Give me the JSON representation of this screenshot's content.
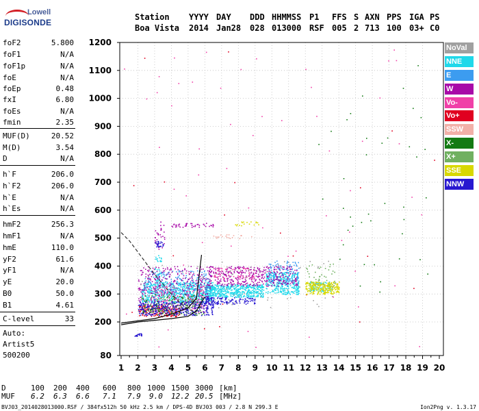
{
  "logo": {
    "line1": "Lowell",
    "line2": "DIGISONDE"
  },
  "header": {
    "labels": [
      "Station",
      "YYYY",
      "DAY",
      "DDD",
      "HHMMSS",
      "P1",
      "FFS",
      "S",
      "AXN",
      "PPS",
      "IGA",
      "PS"
    ],
    "values": [
      "Boa Vista",
      "2014",
      "Jan28",
      "028",
      "013000",
      "RSF",
      "005",
      "2",
      "713",
      "100",
      "03+",
      "C0"
    ]
  },
  "params": [
    {
      "name": "foF2",
      "value": "5.800"
    },
    {
      "name": "foF1",
      "value": "N/A"
    },
    {
      "name": "foF1p",
      "value": "N/A"
    },
    {
      "name": "foE",
      "value": "N/A"
    },
    {
      "name": "foEp",
      "value": "0.48"
    },
    {
      "name": "fxI",
      "value": "6.80"
    },
    {
      "name": "foEs",
      "value": "N/A"
    },
    {
      "name": "fmin",
      "value": "2.35"
    },
    {
      "name": "MUF(D)",
      "value": "20.52"
    },
    {
      "name": "M(D)",
      "value": "3.54"
    },
    {
      "name": "D",
      "value": "N/A"
    },
    {
      "name": "h`F",
      "value": "206.0"
    },
    {
      "name": "h`F2",
      "value": "206.0"
    },
    {
      "name": "h`E",
      "value": "N/A"
    },
    {
      "name": "h`Es",
      "value": "N/A"
    },
    {
      "name": "hmF2",
      "value": "256.3"
    },
    {
      "name": "hmF1",
      "value": "N/A"
    },
    {
      "name": "hmE",
      "value": "110.0"
    },
    {
      "name": "yF2",
      "value": "61.6"
    },
    {
      "name": "yF1",
      "value": "N/A"
    },
    {
      "name": "yE",
      "value": "20.0"
    },
    {
      "name": "B0",
      "value": "50.0"
    },
    {
      "name": "B1",
      "value": "4.61"
    },
    {
      "name": "C-level",
      "value": "33"
    }
  ],
  "auto": [
    "Auto:",
    "Artist5",
    "500200"
  ],
  "legend": [
    {
      "label": "NoVal",
      "color": "#a0a0a0"
    },
    {
      "label": "NNE",
      "color": "#1fd8ea"
    },
    {
      "label": "E",
      "color": "#3c9cf0"
    },
    {
      "label": "W",
      "color": "#a80aa8"
    },
    {
      "label": "Vo-",
      "color": "#f040a8"
    },
    {
      "label": "Vo+",
      "color": "#e00020"
    },
    {
      "label": "SSW",
      "color": "#f2b0a8"
    },
    {
      "label": "X-",
      "color": "#137a13"
    },
    {
      "label": "X+",
      "color": "#70b060"
    },
    {
      "label": "SSE",
      "color": "#d8d800"
    },
    {
      "label": "NNW",
      "color": "#2818d0"
    }
  ],
  "muf_table": {
    "d_label": "D",
    "d_values": [
      "100",
      "200",
      "400",
      "600",
      "800",
      "1000",
      "1500",
      "3000"
    ],
    "d_unit": "[km]",
    "muf_label": "MUF",
    "muf_values": [
      "6.2",
      "6.3",
      "6.6",
      "7.1",
      "7.9",
      "9.0",
      "12.2",
      "20.5"
    ],
    "muf_unit": "[MHz]"
  },
  "footer": "BVJ03_2014028013000.RSF / 384fx512h 50 kHz 2.5 km / DPS-4D BVJ03 003 / 2.8 N 299.3 E",
  "version": "Ion2Png v. 1.3.17",
  "chart_data": {
    "type": "scatter",
    "title": "",
    "xlabel": "",
    "ylabel": "",
    "xlim": [
      1,
      20
    ],
    "ylim": [
      80,
      1200
    ],
    "x_ticks": [
      "1",
      "2",
      "3",
      "4",
      "5",
      "6",
      "7",
      "8",
      "9",
      "10",
      "11",
      "12",
      "13",
      "14",
      "15",
      "16",
      "17",
      "18",
      "19",
      "20"
    ],
    "y_ticks": [
      "80",
      "200",
      "300",
      "400",
      "500",
      "600",
      "700",
      "800",
      "900",
      "1000",
      "1100",
      "1200"
    ],
    "y_tick_values": [
      80,
      200,
      300,
      400,
      500,
      600,
      700,
      800,
      900,
      1000,
      1100,
      1200
    ],
    "grid": true,
    "series": [
      {
        "color": "#1fd8ea",
        "clusters": [
          {
            "x": [
              2.2,
              6.5
            ],
            "y": [
              270,
              345
            ],
            "count": 700
          },
          {
            "x": [
              6.0,
              9.5
            ],
            "y": [
              290,
              335
            ],
            "count": 500
          },
          {
            "x": [
              9.6,
              11.6
            ],
            "y": [
              300,
              380
            ],
            "count": 320
          },
          {
            "x": [
              12.2,
              13.6
            ],
            "y": [
              310,
              345
            ],
            "count": 90
          },
          {
            "x": [
              3.0,
              3.4
            ],
            "y": [
              320,
              440
            ],
            "count": 40
          }
        ]
      },
      {
        "color": "#3c9cf0",
        "clusters": [
          {
            "x": [
              2.4,
              6.3
            ],
            "y": [
              300,
              385
            ],
            "count": 220
          },
          {
            "x": [
              9.8,
              11.6
            ],
            "y": [
              330,
              420
            ],
            "count": 140
          }
        ]
      },
      {
        "color": "#a80aa8",
        "clusters": [
          {
            "x": [
              2.0,
              6.3
            ],
            "y": [
              245,
              400
            ],
            "count": 380
          },
          {
            "x": [
              6.2,
              9.6
            ],
            "y": [
              330,
              400
            ],
            "count": 260
          },
          {
            "x": [
              9.6,
              11.5
            ],
            "y": [
              330,
              400
            ],
            "count": 120
          },
          {
            "x": [
              4.0,
              6.5
            ],
            "y": [
              540,
              555
            ],
            "count": 40
          },
          {
            "x": [
              3.0,
              3.6
            ],
            "y": [
              460,
              560
            ],
            "count": 30
          }
        ]
      },
      {
        "color": "#f040a8",
        "clusters": [
          {
            "x": [
              2.5,
              6.0
            ],
            "y": [
              230,
              330
            ],
            "count": 120
          },
          {
            "x": [
              6.5,
              9.0
            ],
            "y": [
              355,
              395
            ],
            "count": 60
          },
          {
            "x": [
              1.0,
              20.0
            ],
            "y": [
              100,
              1180
            ],
            "count": 60
          }
        ]
      },
      {
        "color": "#e00020",
        "clusters": [
          {
            "x": [
              2.0,
              4.5
            ],
            "y": [
              220,
              260
            ],
            "count": 160
          },
          {
            "x": [
              1.0,
              20.0
            ],
            "y": [
              100,
              1180
            ],
            "count": 20
          }
        ]
      },
      {
        "color": "#f2b0a8",
        "clusters": [
          {
            "x": [
              6.5,
              9.0
            ],
            "y": [
              500,
              515
            ],
            "count": 20
          }
        ]
      },
      {
        "color": "#137a13",
        "clusters": [
          {
            "x": [
              2.2,
              6.0
            ],
            "y": [
              225,
              300
            ],
            "count": 150
          },
          {
            "x": [
              12.5,
              20.0
            ],
            "y": [
              300,
              1150
            ],
            "count": 40
          }
        ]
      },
      {
        "color": "#70b060",
        "clusters": [
          {
            "x": [
              12.0,
              13.8
            ],
            "y": [
              330,
              410
            ],
            "count": 40
          },
          {
            "x": [
              2.5,
              5.5
            ],
            "y": [
              240,
              290
            ],
            "count": 60
          }
        ]
      },
      {
        "color": "#d8d800",
        "clusters": [
          {
            "x": [
              12.0,
              14.0
            ],
            "y": [
              300,
              345
            ],
            "count": 240
          },
          {
            "x": [
              7.8,
              9.2
            ],
            "y": [
              545,
              560
            ],
            "count": 18
          }
        ]
      },
      {
        "color": "#2818d0",
        "clusters": [
          {
            "x": [
              2.0,
              6.5
            ],
            "y": [
              225,
              275
            ],
            "count": 320
          },
          {
            "x": [
              6.0,
              9.0
            ],
            "y": [
              265,
              290
            ],
            "count": 120
          },
          {
            "x": [
              3.0,
              3.5
            ],
            "y": [
              470,
              490
            ],
            "count": 24
          },
          {
            "x": [
              1.8,
              2.2
            ],
            "y": [
              150,
              160
            ],
            "count": 20
          }
        ]
      },
      {
        "color": "#a0a0a0",
        "clusters": [
          {
            "x": [
              2.0,
              14.0
            ],
            "y": [
              250,
              420
            ],
            "count": 80
          }
        ]
      }
    ],
    "traces": [
      {
        "name": "",
        "style": "solid",
        "color": "#000000",
        "x": [
          1.0,
          2.0,
          3.0,
          4.0,
          5.0,
          5.5,
          5.8
        ],
        "y": [
          196,
          204,
          212,
          228,
          250,
          285,
          440
        ]
      },
      {
        "name": "",
        "style": "solid",
        "color": "#000000",
        "x": [
          1.0,
          2.0,
          3.0,
          4.0,
          5.0,
          5.5,
          6.0
        ],
        "y": [
          190,
          200,
          206,
          212,
          220,
          240,
          290
        ]
      },
      {
        "name": "",
        "style": "dashed",
        "color": "#333333",
        "x": [
          1.0,
          1.5,
          2.0,
          2.5,
          3.0,
          3.5,
          4.0,
          4.5,
          5.0,
          5.5
        ],
        "y": [
          520,
          490,
          450,
          410,
          370,
          335,
          300,
          270,
          245,
          235
        ]
      }
    ]
  }
}
